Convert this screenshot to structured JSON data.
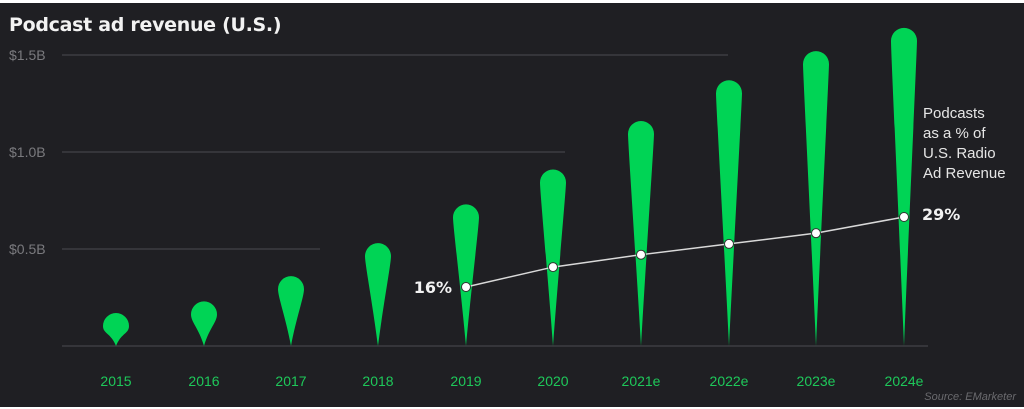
{
  "title": "Podcast ad revenue (U.S.)",
  "source": "Source: EMarketer",
  "annotation": [
    "Podcasts",
    "as a % of",
    "U.S. Radio",
    "Ad Revenue"
  ],
  "colors": {
    "bar": "#00d455",
    "background": "#1f1f23",
    "grid": "#3d3d42",
    "tick": "#7a7a7e",
    "xlabel": "#1ec85a",
    "line": "#d9d9d9"
  },
  "chart_data": {
    "type": "bar",
    "title": "Podcast ad revenue (U.S.)",
    "categories": [
      "2015",
      "2016",
      "2017",
      "2018",
      "2019",
      "2020",
      "2021e",
      "2022e",
      "2023e",
      "2024e"
    ],
    "series": [
      {
        "name": "Podcast ad revenue ($B)",
        "type": "bar",
        "values": [
          0.17,
          0.23,
          0.36,
          0.53,
          0.73,
          0.91,
          1.16,
          1.37,
          1.52,
          1.64
        ]
      },
      {
        "name": "Podcasts as a % of U.S. Radio Ad Revenue",
        "type": "line",
        "values": [
          null,
          null,
          null,
          null,
          16,
          19.7,
          22,
          24,
          26,
          29
        ],
        "labels": {
          "2019": "16%",
          "2024e": "29%"
        }
      }
    ],
    "yticks": [
      "$0.5B",
      "$1.0B",
      "$1.5B"
    ],
    "ylim": [
      0,
      1.7
    ],
    "xlabel": "",
    "ylabel": "",
    "grid": true
  }
}
